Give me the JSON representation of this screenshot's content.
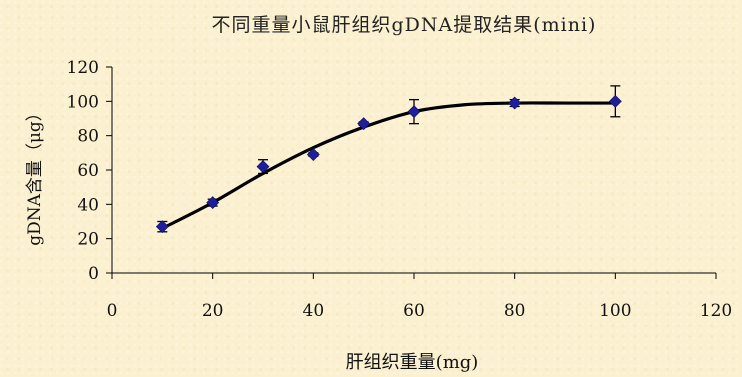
{
  "chart_data": {
    "type": "scatter",
    "title": "不同重量小鼠肝组织gDNA提取结果(mini)",
    "xlabel": "肝组织重量(mg)",
    "ylabel": "gDNA含量（μg）",
    "xlim": [
      0,
      120
    ],
    "ylim": [
      0,
      120
    ],
    "xticks": [
      0,
      20,
      40,
      60,
      80,
      100,
      120
    ],
    "yticks": [
      0,
      20,
      40,
      60,
      80,
      100,
      120
    ],
    "grid": false,
    "marker": "diamond",
    "colors": {
      "marker": "#1f1f9e",
      "curve": "#000000",
      "background": "#fbf0cf"
    },
    "series": [
      {
        "x": [
          10,
          20,
          30,
          40,
          50,
          60,
          80,
          100
        ],
        "y": [
          27,
          41,
          62,
          69,
          87,
          94,
          99,
          100
        ],
        "error": [
          3,
          2,
          4,
          1,
          1,
          7,
          2,
          9
        ]
      }
    ],
    "fit_curve": {
      "x": [
        10,
        20,
        30,
        40,
        50,
        60,
        70,
        80,
        90,
        100
      ],
      "y": [
        26,
        41,
        58,
        73,
        85,
        94,
        98,
        99,
        99,
        99
      ]
    }
  }
}
